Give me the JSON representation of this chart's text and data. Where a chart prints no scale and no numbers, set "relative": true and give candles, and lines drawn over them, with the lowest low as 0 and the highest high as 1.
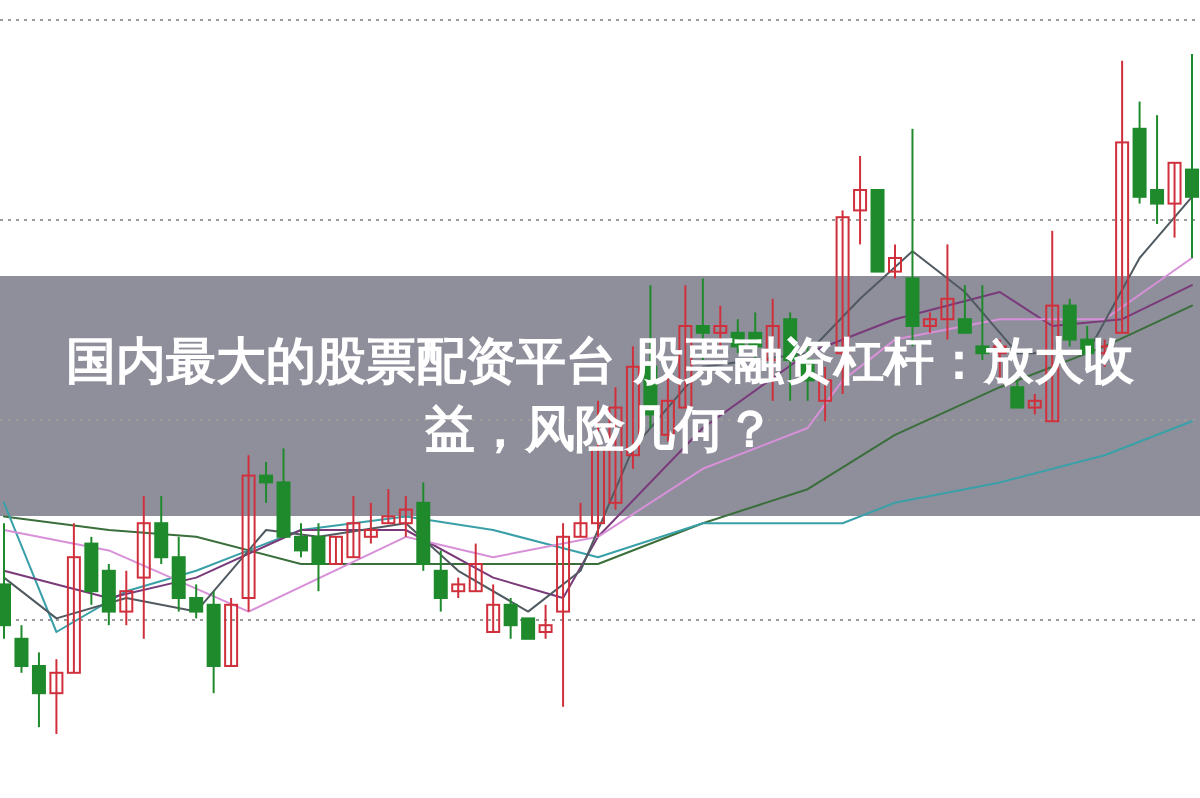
{
  "chart_data": {
    "type": "candlestick",
    "title": "国内最大的股票配资平台 股票融资杠杆：放大收益，风险几何？",
    "relative": true,
    "grid": "y",
    "categories": [
      null,
      null,
      null,
      null,
      null,
      null,
      null,
      null,
      null,
      null,
      null,
      null,
      null,
      null,
      null,
      null,
      null,
      null,
      null,
      null,
      null,
      null,
      null,
      null,
      null,
      null,
      null,
      null,
      null,
      null,
      null,
      null,
      null,
      null,
      null,
      null,
      null,
      null,
      null,
      null,
      null,
      null,
      null,
      null,
      null,
      null,
      null,
      null,
      null,
      null,
      null,
      null,
      null,
      null,
      null,
      null,
      null,
      null,
      null,
      null,
      null,
      null,
      null,
      null,
      null,
      null,
      null,
      null,
      null
    ],
    "ohlc": [
      [
        0.22,
        0.31,
        0.14,
        0.16
      ],
      [
        0.14,
        0.16,
        0.09,
        0.1
      ],
      [
        0.1,
        0.12,
        0.01,
        0.06
      ],
      [
        0.06,
        0.11,
        0,
        0.09
      ],
      [
        0.09,
        0.31,
        0.09,
        0.26
      ],
      [
        0.28,
        0.29,
        0.19,
        0.21
      ],
      [
        0.24,
        0.25,
        0.16,
        0.18
      ],
      [
        0.18,
        0.24,
        0.16,
        0.21
      ],
      [
        0.23,
        0.35,
        0.14,
        0.31
      ],
      [
        0.31,
        0.35,
        0.25,
        0.26
      ],
      [
        0.26,
        0.29,
        0.18,
        0.2
      ],
      [
        0.2,
        0.22,
        0.17,
        0.18
      ],
      [
        0.19,
        0.21,
        0.06,
        0.1
      ],
      [
        0.1,
        0.2,
        0.1,
        0.19
      ],
      [
        0.2,
        0.41,
        0.18,
        0.38
      ],
      [
        0.38,
        0.4,
        0.34,
        0.37
      ],
      [
        0.37,
        0.42,
        0.29,
        0.29
      ],
      [
        0.29,
        0.31,
        0.26,
        0.27
      ],
      [
        0.29,
        0.31,
        0.21,
        0.25
      ],
      [
        0.25,
        0.29,
        0.25,
        0.29
      ],
      [
        0.26,
        0.35,
        0.26,
        0.31
      ],
      [
        0.29,
        0.34,
        0.28,
        0.3
      ],
      [
        0.31,
        0.36,
        0.31,
        0.32
      ],
      [
        0.31,
        0.35,
        0.29,
        0.33
      ],
      [
        0.34,
        0.37,
        0.24,
        0.25
      ],
      [
        0.24,
        0.27,
        0.18,
        0.2
      ],
      [
        0.21,
        0.23,
        0.2,
        0.22
      ],
      [
        0.21,
        0.28,
        0.21,
        0.25
      ],
      [
        0.15,
        0.22,
        0.15,
        0.19
      ],
      [
        0.19,
        0.2,
        0.14,
        0.16
      ],
      [
        0.17,
        0.17,
        0.14,
        0.14
      ],
      [
        0.15,
        0.19,
        0.14,
        0.16
      ],
      [
        0.18,
        0.31,
        0.04,
        0.29
      ],
      [
        0.29,
        0.34,
        0.29,
        0.31
      ],
      [
        0.31,
        0.49,
        0.29,
        0.42
      ],
      [
        0.34,
        0.51,
        0.33,
        0.48
      ],
      [
        0.41,
        0.57,
        0.39,
        0.54
      ],
      [
        0.54,
        0.66,
        0.45,
        0.47
      ],
      [
        0.44,
        0.53,
        0.43,
        0.49
      ],
      [
        0.48,
        0.66,
        0.48,
        0.6
      ],
      [
        0.6,
        0.67,
        0.55,
        0.59
      ],
      [
        0.59,
        0.63,
        0.57,
        0.6
      ],
      [
        0.59,
        0.61,
        0.56,
        0.57
      ],
      [
        0.59,
        0.62,
        0.55,
        0.57
      ],
      [
        0.55,
        0.64,
        0.49,
        0.6
      ],
      [
        0.61,
        0.62,
        0.49,
        0.55
      ],
      [
        0.55,
        0.58,
        0.49,
        0.52
      ],
      [
        0.49,
        0.54,
        0.46,
        0.52
      ],
      [
        0.56,
        0.77,
        0.5,
        0.76
      ],
      [
        0.77,
        0.85,
        0.72,
        0.8
      ],
      [
        0.8,
        0.8,
        0.68,
        0.68
      ],
      [
        0.68,
        0.72,
        0.67,
        0.7
      ],
      [
        0.67,
        0.89,
        0.57,
        0.6
      ],
      [
        0.6,
        0.62,
        0.59,
        0.61
      ],
      [
        0.61,
        0.72,
        0.58,
        0.64
      ],
      [
        0.61,
        0.66,
        0.59,
        0.59
      ],
      [
        0.57,
        0.66,
        0.55,
        0.56
      ],
      [
        0.56,
        0.58,
        0.52,
        0.57
      ],
      [
        0.51,
        0.52,
        0.48,
        0.48
      ],
      [
        0.48,
        0.5,
        0.47,
        0.49
      ],
      [
        0.46,
        0.74,
        0.46,
        0.63
      ],
      [
        0.63,
        0.64,
        0.57,
        0.58
      ],
      [
        0.58,
        0.6,
        0.55,
        0.56
      ],
      [
        0.56,
        0.58,
        0.54,
        0.57
      ],
      [
        0.59,
        0.99,
        0.59,
        0.87
      ],
      [
        0.89,
        0.93,
        0.78,
        0.79
      ],
      [
        0.8,
        0.91,
        0.75,
        0.78
      ],
      [
        0.78,
        0.84,
        0.73,
        0.84
      ],
      [
        0.83,
        1,
        0.7,
        0.79
      ]
    ],
    "colors": [
      "#1f8a2c",
      "#1f8a2c",
      "#1f8a2c",
      "#d0303c",
      "#d0303c",
      "#1f8a2c",
      "#1f8a2c",
      "#d0303c",
      "#d0303c",
      "#1f8a2c",
      "#1f8a2c",
      "#1f8a2c",
      "#1f8a2c",
      "#d0303c",
      "#d0303c",
      "#1f8a2c",
      "#1f8a2c",
      "#1f8a2c",
      "#1f8a2c",
      "#d0303c",
      "#d0303c",
      "#d0303c",
      "#d0303c",
      "#d0303c",
      "#1f8a2c",
      "#1f8a2c",
      "#d0303c",
      "#d0303c",
      "#d0303c",
      "#1f8a2c",
      "#1f8a2c",
      "#d0303c",
      "#d0303c",
      "#d0303c",
      "#d0303c",
      "#d0303c",
      "#d0303c",
      "#1f8a2c",
      "#d0303c",
      "#d0303c",
      "#1f8a2c",
      "#d0303c",
      "#1f8a2c",
      "#1f8a2c",
      "#d0303c",
      "#1f8a2c",
      "#1f8a2c",
      "#d0303c",
      "#d0303c",
      "#d0303c",
      "#1f8a2c",
      "#d0303c",
      "#1f8a2c",
      "#d0303c",
      "#d0303c",
      "#1f8a2c",
      "#1f8a2c",
      "#d0303c",
      "#1f8a2c",
      "#d0303c",
      "#d0303c",
      "#1f8a2c",
      "#1f8a2c",
      "#d0303c",
      "#d0303c",
      "#1f8a2c",
      "#1f8a2c",
      "#d0303c",
      "#1f8a2c"
    ],
    "series": [
      {
        "type": "line",
        "color": "#3a6e3a",
        "values": [
          0.32,
          null,
          null,
          null,
          null,
          null,
          0.3,
          null,
          null,
          null,
          null,
          0.29,
          null,
          null,
          null,
          null,
          null,
          0.25,
          null,
          null,
          null,
          null,
          null,
          0.25,
          null,
          null,
          null,
          null,
          0.25,
          null,
          null,
          null,
          null,
          null,
          0.25,
          null,
          null,
          null,
          null,
          null,
          0.31,
          null,
          null,
          null,
          null,
          null,
          0.36,
          null,
          null,
          null,
          null,
          0.44,
          null,
          null,
          null,
          null,
          null,
          0.51,
          null,
          null,
          null,
          null,
          null,
          0.57,
          null,
          null,
          null,
          null,
          0.63
        ]
      },
      {
        "type": "line",
        "color": "#3aa0a8",
        "values": [
          0.34,
          null,
          null,
          0.15,
          null,
          null,
          null,
          0.21,
          null,
          null,
          null,
          0.24,
          null,
          null,
          null,
          null,
          null,
          0.3,
          null,
          null,
          null,
          null,
          null,
          0.32,
          null,
          null,
          null,
          null,
          0.3,
          null,
          null,
          null,
          null,
          null,
          0.26,
          null,
          null,
          null,
          null,
          null,
          0.31,
          null,
          null,
          null,
          null,
          null,
          0.31,
          null,
          0.31,
          null,
          null,
          0.34,
          null,
          null,
          null,
          null,
          null,
          0.37,
          null,
          null,
          null,
          null,
          null,
          0.41,
          null,
          null,
          null,
          null,
          0.46
        ]
      },
      {
        "type": "line",
        "color": "#7a3a7a",
        "values": [
          0.24,
          null,
          null,
          null,
          null,
          null,
          0.2,
          null,
          null,
          null,
          null,
          0.23,
          null,
          null,
          null,
          null,
          null,
          0.3,
          null,
          null,
          null,
          null,
          null,
          0.3,
          null,
          null,
          null,
          null,
          0.23,
          null,
          null,
          null,
          0.2,
          null,
          0.29,
          null,
          null,
          null,
          null,
          null,
          0.45,
          null,
          null,
          null,
          null,
          null,
          0.56,
          null,
          null,
          null,
          null,
          0.61,
          null,
          null,
          null,
          null,
          null,
          0.65,
          null,
          null,
          0.6,
          null,
          null,
          null,
          0.61,
          null,
          null,
          null,
          0.66
        ]
      },
      {
        "type": "line",
        "color": "#d890d8",
        "values": [
          0.3,
          null,
          null,
          null,
          null,
          null,
          0.27,
          null,
          null,
          null,
          null,
          null,
          null,
          null,
          0.18,
          null,
          null,
          null,
          null,
          null,
          null,
          null,
          null,
          0.29,
          null,
          null,
          null,
          null,
          0.26,
          null,
          null,
          null,
          null,
          null,
          0.29,
          null,
          null,
          null,
          null,
          null,
          0.39,
          null,
          null,
          null,
          null,
          null,
          0.45,
          null,
          0.52,
          null,
          null,
          0.58,
          null,
          null,
          null,
          null,
          null,
          0.61,
          null,
          null,
          null,
          null,
          null,
          0.61,
          null,
          null,
          null,
          null,
          0.7
        ]
      },
      {
        "type": "line",
        "color": "#505a60",
        "values": [
          0.23,
          null,
          null,
          0.17,
          null,
          null,
          null,
          0.2,
          null,
          null,
          null,
          0.18,
          null,
          null,
          null,
          0.3,
          null,
          null,
          0.29,
          null,
          null,
          null,
          null,
          0.31,
          null,
          null,
          0.24,
          null,
          null,
          null,
          0.18,
          null,
          null,
          0.24,
          null,
          null,
          0.42,
          null,
          null,
          null,
          0.54,
          null,
          null,
          null,
          null,
          null,
          0.56,
          null,
          null,
          0.64,
          null,
          null,
          0.71,
          null,
          null,
          0.65,
          null,
          null,
          0.56,
          null,
          null,
          null,
          0.56,
          null,
          null,
          0.7,
          null,
          null,
          0.79
        ]
      }
    ]
  }
}
